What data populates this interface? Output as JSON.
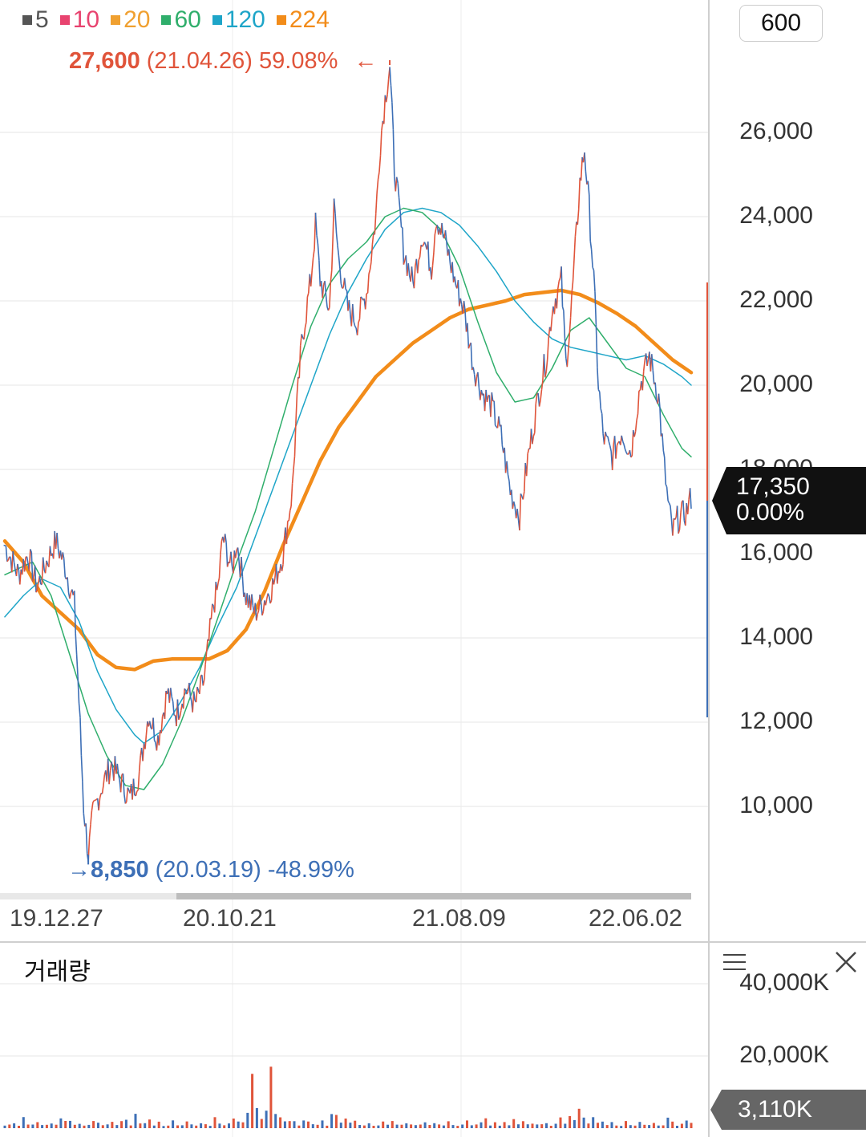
{
  "toolbar": {
    "zoom_label": "600"
  },
  "legend": [
    {
      "label": "5",
      "color": "#555555"
    },
    {
      "label": "10",
      "color": "#e8436f"
    },
    {
      "label": "20",
      "color": "#f0a030"
    },
    {
      "label": "60",
      "color": "#2fae6b"
    },
    {
      "label": "120",
      "color": "#1ea5c8"
    },
    {
      "label": "224",
      "color": "#f28c1a"
    }
  ],
  "annotations": {
    "high": {
      "price": "27,600",
      "date": "(21.04.26)",
      "pct": "59.08%",
      "arrow": "←",
      "color": "#e0543a"
    },
    "low": {
      "arrow": "→",
      "price": "8,850",
      "date": "(20.03.19)",
      "pct": "-48.99%",
      "color": "#3d6fb6"
    }
  },
  "price_badge": {
    "price": "17,350",
    "change": "0.00%"
  },
  "volume": {
    "title": "거래량",
    "current": "3,110K"
  },
  "colors": {
    "up": "#e0543a",
    "down": "#3d6fb6",
    "badge_dark": "#111111",
    "badge_gray": "#666666"
  },
  "chart_data": {
    "type": "line",
    "x_ticks": [
      "19.12.27",
      "20.10.21",
      "21.08.09",
      "22.06.02"
    ],
    "y_ticks": [
      "10,000",
      "12,000",
      "14,000",
      "16,000",
      "18,000",
      "20,000",
      "22,000",
      "24,000",
      "26,000"
    ],
    "ylim": [
      8000,
      28000
    ],
    "price_path": [
      [
        0,
        16200
      ],
      [
        3,
        15500
      ],
      [
        5,
        16000
      ],
      [
        7,
        15200
      ],
      [
        9,
        15800
      ],
      [
        11,
        16300
      ],
      [
        13,
        15700
      ],
      [
        15,
        14800
      ],
      [
        16,
        12500
      ],
      [
        17,
        10000
      ],
      [
        18,
        8850
      ],
      [
        19,
        9800
      ],
      [
        21,
        10500
      ],
      [
        23,
        11000
      ],
      [
        25,
        10600
      ],
      [
        27,
        10200
      ],
      [
        29,
        10800
      ],
      [
        31,
        12200
      ],
      [
        33,
        11600
      ],
      [
        35,
        12700
      ],
      [
        37,
        12200
      ],
      [
        39,
        12800
      ],
      [
        41,
        12400
      ],
      [
        43,
        13000
      ],
      [
        45,
        14800
      ],
      [
        46,
        15200
      ],
      [
        47,
        16400
      ],
      [
        48,
        16000
      ],
      [
        49,
        15600
      ],
      [
        50,
        16300
      ],
      [
        51,
        15600
      ],
      [
        52,
        15000
      ],
      [
        54,
        14600
      ],
      [
        56,
        14900
      ],
      [
        58,
        15300
      ],
      [
        60,
        16000
      ],
      [
        62,
        17500
      ],
      [
        63,
        19500
      ],
      [
        64,
        21000
      ],
      [
        66,
        22500
      ],
      [
        67,
        23800
      ],
      [
        68,
        22500
      ],
      [
        70,
        21800
      ],
      [
        71,
        24200
      ],
      [
        72,
        23000
      ],
      [
        74,
        21800
      ],
      [
        76,
        21500
      ],
      [
        78,
        22200
      ],
      [
        80,
        24000
      ],
      [
        81,
        25800
      ],
      [
        82,
        26800
      ],
      [
        83,
        27600
      ],
      [
        84,
        25200
      ],
      [
        86,
        23200
      ],
      [
        88,
        22400
      ],
      [
        90,
        23600
      ],
      [
        92,
        22800
      ],
      [
        93,
        24000
      ],
      [
        95,
        23400
      ],
      [
        97,
        22500
      ],
      [
        99,
        21800
      ],
      [
        101,
        20500
      ],
      [
        103,
        19800
      ],
      [
        105,
        19500
      ],
      [
        107,
        18800
      ],
      [
        109,
        17500
      ],
      [
        111,
        16900
      ],
      [
        113,
        18400
      ],
      [
        115,
        19700
      ],
      [
        117,
        20800
      ],
      [
        118,
        21800
      ],
      [
        120,
        22500
      ],
      [
        121,
        20500
      ],
      [
        122,
        21600
      ],
      [
        123,
        23200
      ],
      [
        124,
        24800
      ],
      [
        125,
        25600
      ],
      [
        126,
        24200
      ],
      [
        127,
        22500
      ],
      [
        128,
        20000
      ],
      [
        129,
        18800
      ],
      [
        131,
        18300
      ],
      [
        133,
        18900
      ],
      [
        135,
        18400
      ],
      [
        137,
        20000
      ],
      [
        139,
        20700
      ],
      [
        141,
        19700
      ],
      [
        142,
        18300
      ],
      [
        143,
        17200
      ],
      [
        144,
        16500
      ],
      [
        145,
        16800
      ],
      [
        147,
        17000
      ],
      [
        148,
        17350
      ]
    ],
    "ma_224": [
      [
        0,
        16300
      ],
      [
        4,
        15800
      ],
      [
        8,
        15000
      ],
      [
        12,
        14600
      ],
      [
        16,
        14200
      ],
      [
        18,
        13900
      ],
      [
        20,
        13600
      ],
      [
        24,
        13300
      ],
      [
        28,
        13250
      ],
      [
        32,
        13450
      ],
      [
        36,
        13500
      ],
      [
        40,
        13500
      ],
      [
        44,
        13500
      ],
      [
        48,
        13700
      ],
      [
        52,
        14200
      ],
      [
        56,
        15100
      ],
      [
        60,
        16200
      ],
      [
        64,
        17200
      ],
      [
        68,
        18200
      ],
      [
        72,
        19000
      ],
      [
        76,
        19600
      ],
      [
        80,
        20200
      ],
      [
        84,
        20600
      ],
      [
        88,
        21000
      ],
      [
        92,
        21300
      ],
      [
        96,
        21600
      ],
      [
        100,
        21800
      ],
      [
        104,
        21900
      ],
      [
        108,
        22000
      ],
      [
        112,
        22150
      ],
      [
        116,
        22200
      ],
      [
        120,
        22250
      ],
      [
        124,
        22150
      ],
      [
        128,
        21950
      ],
      [
        132,
        21700
      ],
      [
        136,
        21400
      ],
      [
        140,
        21000
      ],
      [
        144,
        20600
      ],
      [
        148,
        20300
      ]
    ],
    "ma_120": [
      [
        0,
        14500
      ],
      [
        4,
        15000
      ],
      [
        8,
        15400
      ],
      [
        12,
        15200
      ],
      [
        16,
        14400
      ],
      [
        20,
        13200
      ],
      [
        24,
        12300
      ],
      [
        28,
        11700
      ],
      [
        30,
        11500
      ],
      [
        34,
        11800
      ],
      [
        38,
        12500
      ],
      [
        42,
        13300
      ],
      [
        46,
        14300
      ],
      [
        50,
        15200
      ],
      [
        54,
        16400
      ],
      [
        58,
        17600
      ],
      [
        62,
        18800
      ],
      [
        66,
        20000
      ],
      [
        70,
        21200
      ],
      [
        74,
        22200
      ],
      [
        78,
        23000
      ],
      [
        82,
        23700
      ],
      [
        86,
        24100
      ],
      [
        90,
        24200
      ],
      [
        94,
        24100
      ],
      [
        98,
        23800
      ],
      [
        102,
        23300
      ],
      [
        106,
        22700
      ],
      [
        110,
        22000
      ],
      [
        114,
        21500
      ],
      [
        118,
        21100
      ],
      [
        122,
        20900
      ],
      [
        126,
        20800
      ],
      [
        130,
        20700
      ],
      [
        134,
        20600
      ],
      [
        138,
        20700
      ],
      [
        142,
        20500
      ],
      [
        146,
        20200
      ],
      [
        148,
        20000
      ]
    ],
    "ma_60": [
      [
        0,
        15500
      ],
      [
        6,
        15800
      ],
      [
        10,
        15000
      ],
      [
        14,
        13600
      ],
      [
        18,
        12200
      ],
      [
        22,
        11200
      ],
      [
        26,
        10500
      ],
      [
        30,
        10400
      ],
      [
        34,
        11000
      ],
      [
        38,
        12000
      ],
      [
        42,
        13200
      ],
      [
        46,
        14500
      ],
      [
        50,
        15800
      ],
      [
        54,
        17000
      ],
      [
        58,
        18500
      ],
      [
        62,
        20000
      ],
      [
        66,
        21400
      ],
      [
        70,
        22400
      ],
      [
        74,
        23000
      ],
      [
        78,
        23400
      ],
      [
        82,
        24000
      ],
      [
        86,
        24200
      ],
      [
        90,
        24100
      ],
      [
        94,
        23700
      ],
      [
        98,
        22800
      ],
      [
        102,
        21500
      ],
      [
        106,
        20300
      ],
      [
        110,
        19600
      ],
      [
        114,
        19700
      ],
      [
        118,
        20400
      ],
      [
        122,
        21300
      ],
      [
        126,
        21600
      ],
      [
        130,
        21000
      ],
      [
        134,
        20400
      ],
      [
        138,
        20200
      ],
      [
        142,
        19300
      ],
      [
        146,
        18500
      ],
      [
        148,
        18300
      ]
    ],
    "volume_path": [
      1,
      1,
      2,
      1,
      3,
      1,
      1,
      2,
      1,
      1,
      2,
      1,
      4,
      3,
      2,
      1,
      2,
      1,
      1,
      3,
      2,
      1,
      1,
      2,
      1,
      2,
      3,
      1,
      6,
      2,
      2,
      3,
      1,
      2,
      1,
      1,
      2,
      1,
      1,
      2,
      1,
      1,
      2,
      1,
      1,
      3,
      2,
      1,
      2,
      3,
      2,
      2,
      4,
      22,
      8,
      3,
      6,
      17,
      4,
      3,
      2,
      3,
      2,
      1,
      2,
      2,
      1,
      1,
      2,
      1,
      4,
      6,
      2,
      3,
      2,
      2,
      1,
      1,
      2,
      1,
      1,
      2,
      1,
      2,
      1,
      1,
      2,
      1,
      1,
      1,
      2,
      1,
      2,
      1,
      1,
      2,
      1,
      1,
      1,
      2,
      1,
      1,
      2,
      3,
      1,
      2,
      1,
      2,
      1,
      3,
      1,
      2,
      1,
      2,
      1,
      1,
      2,
      1,
      2,
      3,
      2,
      4,
      3,
      5,
      3,
      2,
      4,
      2,
      2,
      1,
      2,
      1,
      1,
      2,
      1,
      1,
      2,
      1,
      1,
      2,
      1,
      1,
      4,
      2,
      1,
      2,
      3,
      2
    ],
    "volume_ticks": [
      "40,000K",
      "20,000K"
    ]
  }
}
